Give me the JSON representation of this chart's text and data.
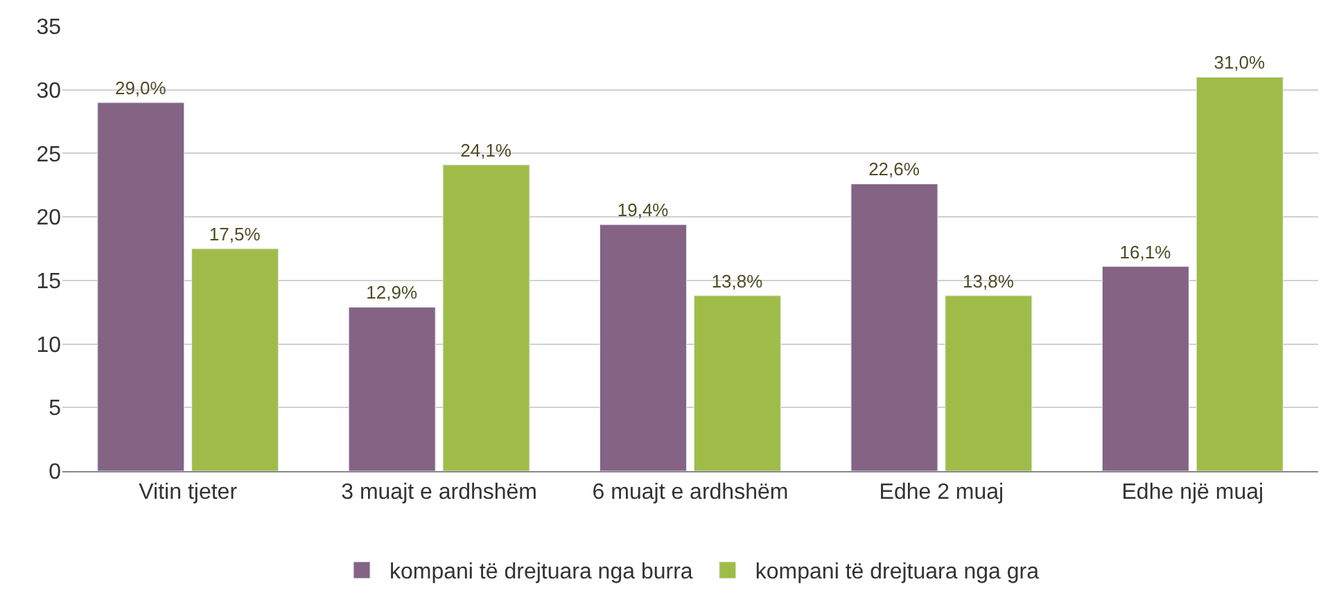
{
  "chart_data": {
    "type": "bar",
    "categories": [
      "Vitin tjeter",
      "3 muajt e ardhshëm",
      "6 muajt e ardhshëm",
      "Edhe 2 muaj",
      "Edhe një muaj"
    ],
    "series": [
      {
        "name": "kompani të drejtuara nga burra",
        "color": "#846385",
        "values": [
          29.0,
          12.9,
          19.4,
          22.6,
          16.1
        ],
        "value_labels": [
          "29,0%",
          "12,9%",
          "19,4%",
          "22,6%",
          "16,1%"
        ]
      },
      {
        "name": "kompani të drejtuara nga gra",
        "color": "#a0bc48",
        "values": [
          17.5,
          24.1,
          13.8,
          13.8,
          31.0
        ],
        "value_labels": [
          "17,5%",
          "24,1%",
          "13,8%",
          "13,8%",
          "31,0%"
        ]
      }
    ],
    "ylim": [
      0,
      35
    ],
    "yticks": [
      0,
      5,
      10,
      15,
      20,
      25,
      30,
      35
    ],
    "grid": "y",
    "legend": "bottom"
  }
}
